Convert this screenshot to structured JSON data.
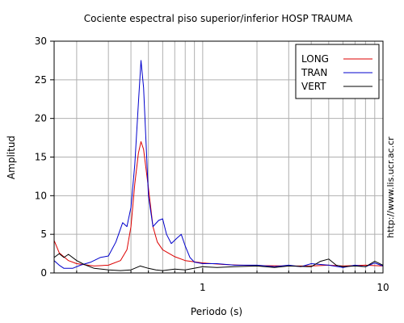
{
  "chart_data": {
    "type": "line",
    "title": "Cociente espectral piso superior/inferior  HOSP TRAUMA",
    "xlabel": "Periodo (s)",
    "ylabel": "Amplitud",
    "x_scale": "log",
    "xlim": [
      0.15,
      10
    ],
    "ylim": [
      0,
      30
    ],
    "x_ticks": [
      {
        "value": 1,
        "label": "1"
      },
      {
        "value": 10,
        "label": "10"
      }
    ],
    "y_ticks": [
      {
        "value": 0,
        "label": "0"
      },
      {
        "value": 5,
        "label": "5"
      },
      {
        "value": 10,
        "label": "10"
      },
      {
        "value": 15,
        "label": "15"
      },
      {
        "value": 20,
        "label": "20"
      },
      {
        "value": 25,
        "label": "25"
      },
      {
        "value": 30,
        "label": "30"
      }
    ],
    "grid": true,
    "legend_position": "top-right",
    "side_text": "http://www.lis.ucr.ac.cr",
    "series": [
      {
        "name": "LONG",
        "color": "#dd0000",
        "points": [
          [
            0.15,
            4.2
          ],
          [
            0.16,
            2.6
          ],
          [
            0.18,
            1.6
          ],
          [
            0.2,
            1.2
          ],
          [
            0.25,
            0.9
          ],
          [
            0.3,
            1.0
          ],
          [
            0.35,
            1.6
          ],
          [
            0.38,
            3.0
          ],
          [
            0.4,
            6.0
          ],
          [
            0.42,
            11.5
          ],
          [
            0.44,
            15.5
          ],
          [
            0.455,
            17.0
          ],
          [
            0.47,
            16.0
          ],
          [
            0.5,
            11.0
          ],
          [
            0.53,
            6.0
          ],
          [
            0.56,
            4.0
          ],
          [
            0.6,
            3.0
          ],
          [
            0.7,
            2.1
          ],
          [
            0.8,
            1.6
          ],
          [
            1.0,
            1.3
          ],
          [
            1.3,
            1.1
          ],
          [
            1.6,
            1.0
          ],
          [
            2.0,
            0.95
          ],
          [
            3.0,
            0.9
          ],
          [
            4.0,
            0.9
          ],
          [
            5.0,
            1.0
          ],
          [
            6.0,
            0.9
          ],
          [
            8.0,
            1.0
          ],
          [
            10.0,
            0.9
          ]
        ]
      },
      {
        "name": "TRAN",
        "color": "#0000cc",
        "points": [
          [
            0.15,
            1.6
          ],
          [
            0.16,
            1.0
          ],
          [
            0.17,
            0.6
          ],
          [
            0.19,
            0.6
          ],
          [
            0.21,
            1.0
          ],
          [
            0.24,
            1.4
          ],
          [
            0.27,
            2.0
          ],
          [
            0.3,
            2.2
          ],
          [
            0.33,
            4.0
          ],
          [
            0.36,
            6.5
          ],
          [
            0.38,
            6.0
          ],
          [
            0.4,
            8.5
          ],
          [
            0.42,
            14.0
          ],
          [
            0.44,
            22.0
          ],
          [
            0.455,
            27.5
          ],
          [
            0.47,
            24.0
          ],
          [
            0.5,
            10.0
          ],
          [
            0.53,
            6.0
          ],
          [
            0.57,
            6.8
          ],
          [
            0.6,
            7.0
          ],
          [
            0.63,
            5.0
          ],
          [
            0.67,
            3.8
          ],
          [
            0.72,
            4.5
          ],
          [
            0.76,
            5.0
          ],
          [
            0.8,
            3.5
          ],
          [
            0.85,
            2.0
          ],
          [
            0.9,
            1.4
          ],
          [
            1.0,
            1.2
          ],
          [
            1.2,
            1.2
          ],
          [
            1.5,
            1.0
          ],
          [
            2.0,
            1.0
          ],
          [
            2.5,
            0.8
          ],
          [
            3.0,
            1.0
          ],
          [
            3.5,
            0.8
          ],
          [
            4.0,
            1.2
          ],
          [
            5.0,
            1.0
          ],
          [
            6.0,
            0.7
          ],
          [
            7.0,
            1.0
          ],
          [
            8.0,
            0.8
          ],
          [
            9.0,
            1.3
          ],
          [
            10.0,
            0.9
          ]
        ]
      },
      {
        "name": "VERT",
        "color": "#000000",
        "points": [
          [
            0.15,
            2.0
          ],
          [
            0.16,
            2.5
          ],
          [
            0.17,
            2.0
          ],
          [
            0.18,
            2.4
          ],
          [
            0.2,
            1.6
          ],
          [
            0.22,
            1.1
          ],
          [
            0.25,
            0.6
          ],
          [
            0.3,
            0.4
          ],
          [
            0.35,
            0.3
          ],
          [
            0.4,
            0.4
          ],
          [
            0.45,
            0.9
          ],
          [
            0.5,
            0.6
          ],
          [
            0.55,
            0.4
          ],
          [
            0.6,
            0.3
          ],
          [
            0.7,
            0.5
          ],
          [
            0.8,
            0.4
          ],
          [
            1.0,
            0.8
          ],
          [
            1.2,
            0.7
          ],
          [
            1.5,
            0.8
          ],
          [
            2.0,
            0.9
          ],
          [
            2.5,
            0.7
          ],
          [
            3.0,
            0.9
          ],
          [
            4.0,
            0.8
          ],
          [
            4.5,
            1.5
          ],
          [
            5.0,
            1.8
          ],
          [
            5.5,
            1.0
          ],
          [
            6.0,
            0.8
          ],
          [
            7.0,
            0.9
          ],
          [
            8.0,
            0.8
          ],
          [
            9.0,
            1.5
          ],
          [
            10.0,
            1.0
          ]
        ]
      }
    ]
  }
}
